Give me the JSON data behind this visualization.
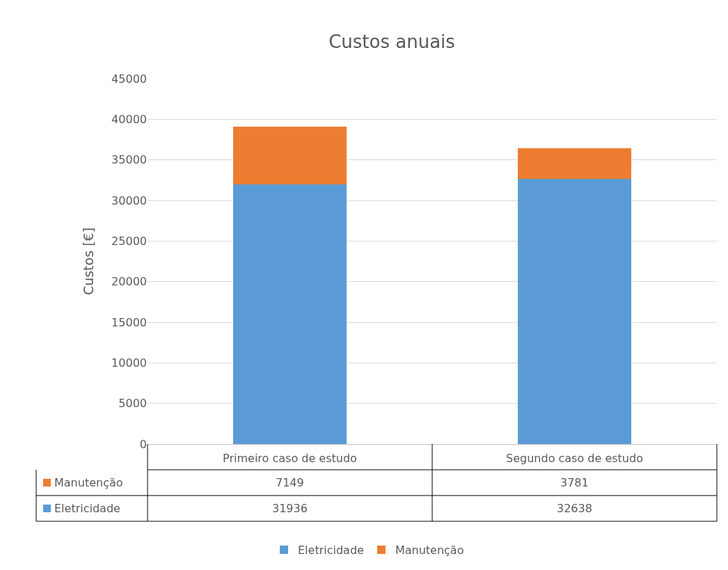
{
  "chart_data": {
    "type": "bar",
    "title": "Custos anuais",
    "ylabel": "Custos [€]",
    "categories": [
      "Primeiro caso de estudo",
      "Segundo caso de estudo"
    ],
    "series": [
      {
        "name": "Eletricidade",
        "color": "#5b9bd5",
        "values": [
          31936,
          32638
        ]
      },
      {
        "name": "Manutenção",
        "color": "#ed7d31",
        "values": [
          7149,
          3781
        ]
      }
    ],
    "stacked": true,
    "ylim": [
      0,
      45000
    ],
    "yticks": [
      0,
      5000,
      10000,
      15000,
      20000,
      25000,
      30000,
      35000,
      40000,
      45000
    ],
    "grid": "y",
    "legend": "bottom",
    "data_labels": true
  }
}
